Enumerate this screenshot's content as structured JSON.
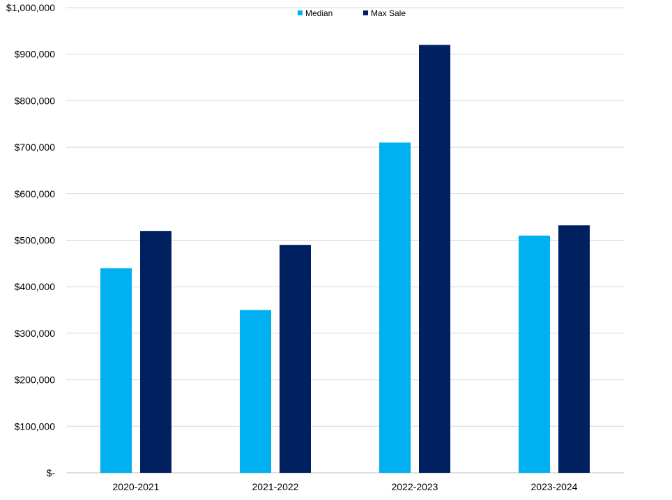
{
  "chart_data": {
    "type": "bar",
    "categories": [
      "2020-2021",
      "2021-2022",
      "2022-2023",
      "2023-2024"
    ],
    "series": [
      {
        "name": "Median",
        "values": [
          440000,
          350000,
          710000,
          510000
        ],
        "color": "#00B0F0"
      },
      {
        "name": "Max Sale",
        "values": [
          520000,
          490000,
          920000,
          532000
        ],
        "color": "#002060"
      }
    ],
    "ylim": [
      0,
      1000000
    ],
    "yticks": [
      0,
      100000,
      200000,
      300000,
      400000,
      500000,
      600000,
      700000,
      800000,
      900000,
      1000000
    ],
    "ytick_labels": [
      "$-",
      "$100,000",
      "$200,000",
      "$300,000",
      "$400,000",
      "$500,000",
      "$600,000",
      "$700,000",
      "$800,000",
      "$900,000",
      "$1,000,000"
    ],
    "grid": true,
    "legend_position": "top-center",
    "title": "",
    "xlabel": "",
    "ylabel": ""
  },
  "colors": {
    "gridline": "#D9D9D9",
    "axis": "#BFBFBF"
  }
}
